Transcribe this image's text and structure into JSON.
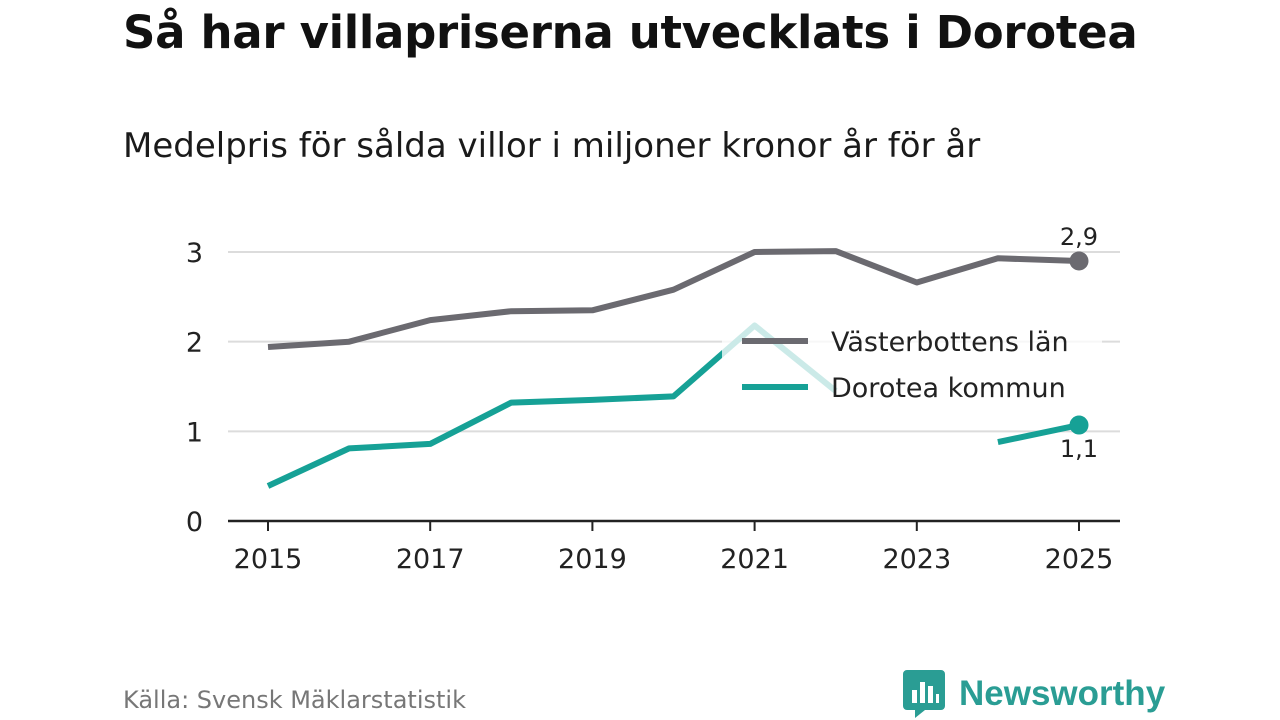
{
  "title": "Så har villapriserna utvecklats i Dorotea",
  "subtitle": "Medelpris för sålda villor i miljoner kronor år för år",
  "source": "Källa: Svensk Mäklarstatistik",
  "brand": "Newsworthy",
  "colors": {
    "lan": "#6b6a70",
    "kommun": "#16a196",
    "grid": "#dcdcdc",
    "axis": "#222222",
    "brand": "#2a9d94"
  },
  "chart_data": {
    "type": "line",
    "title": "Så har villapriserna utvecklats i Dorotea",
    "subtitle": "Medelpris för sålda villor i miljoner kronor år för år",
    "xlabel": "",
    "ylabel": "",
    "x": [
      2015,
      2016,
      2017,
      2018,
      2019,
      2020,
      2021,
      2022,
      2023,
      2024,
      2025
    ],
    "xlim": [
      2014.6,
      2025.5
    ],
    "ylim": [
      0,
      3.3
    ],
    "xticks": [
      "2015",
      "2017",
      "2019",
      "2021",
      "2023",
      "2025"
    ],
    "yticks": [
      "0",
      "1",
      "2",
      "3"
    ],
    "grid": true,
    "legend_position": "right-middle",
    "series": [
      {
        "name": "Västerbottens län",
        "color": "#6b6a70",
        "values": [
          1.94,
          2.0,
          2.24,
          2.34,
          2.35,
          2.58,
          3.0,
          3.01,
          2.66,
          2.93,
          2.9
        ],
        "end_label": "2,9"
      },
      {
        "name": "Dorotea kommun",
        "color": "#16a196",
        "values": [
          0.39,
          0.81,
          0.86,
          1.32,
          1.35,
          1.39,
          2.18,
          1.45,
          null,
          0.88,
          1.07
        ],
        "end_label": "1,1"
      }
    ]
  }
}
